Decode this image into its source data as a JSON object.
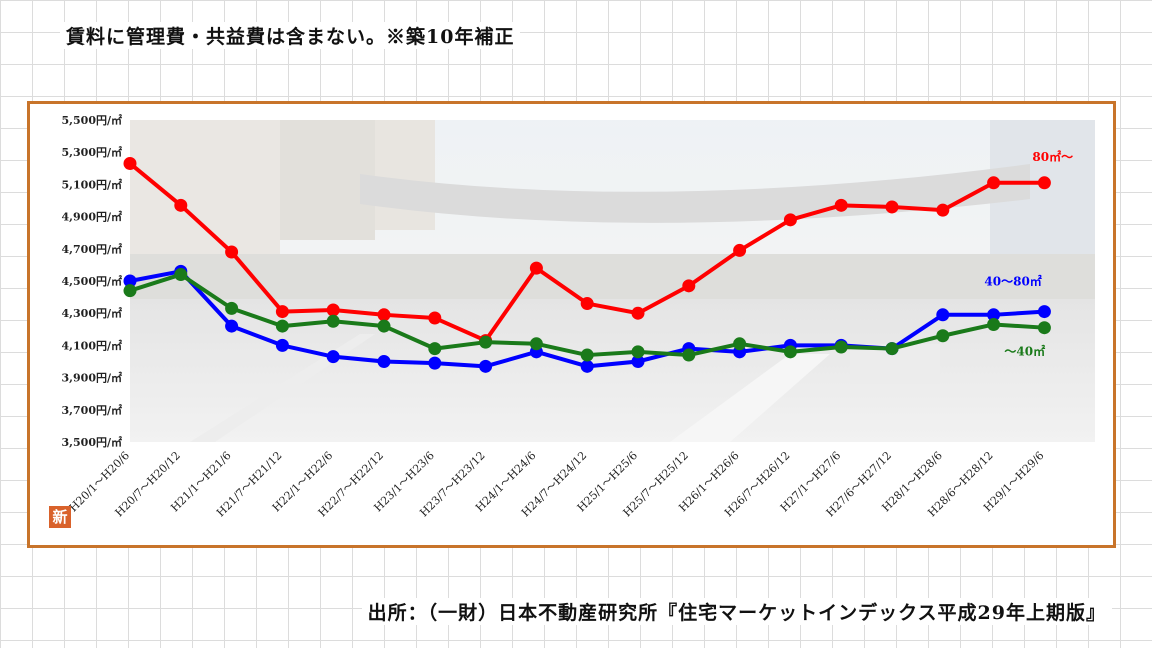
{
  "header": {
    "note": "賃料に管理費・共益費は含まない。※築10年補正"
  },
  "footer": {
    "source": "出所：（一財）日本不動産研究所『住宅マーケットインデックス平成29年上期版』"
  },
  "badge": {
    "text": "新"
  },
  "chart_data": {
    "type": "line",
    "title": "",
    "xlabel": "",
    "ylabel": "",
    "ylim": [
      3500,
      5500
    ],
    "yticks": [
      "5,500円/㎡",
      "5,300円/㎡",
      "5,100円/㎡",
      "4,900円/㎡",
      "4,700円/㎡",
      "4,500円/㎡",
      "4,300円/㎡",
      "4,100円/㎡",
      "3,900円/㎡",
      "3,700円/㎡",
      "3,500円/㎡"
    ],
    "ytick_values": [
      5500,
      5300,
      5100,
      4900,
      4700,
      4500,
      4300,
      4100,
      3900,
      3700,
      3500
    ],
    "categories": [
      "H20/1～H20/6",
      "H20/7～H20/12",
      "H21/1～H21/6",
      "H21/7～H21/12",
      "H22/1～H22/6",
      "H22/7～H22/12",
      "H23/1～H23/6",
      "H23/7～H23/12",
      "H24/1～H24/6",
      "H24/7～H24/12",
      "H25/1～H25/6",
      "H25/7～H25/12",
      "H26/1～H26/6",
      "H26/7～H26/12",
      "H27/1～H27/6",
      "H27/6～H27/12",
      "H28/1～H28/6",
      "H28/6～H28/12",
      "H29/1～H29/6"
    ],
    "series": [
      {
        "name": "80㎡～",
        "color": "#ff0000",
        "values": [
          5230,
          4970,
          4680,
          4310,
          4320,
          4290,
          4270,
          4130,
          4580,
          4360,
          4300,
          4470,
          4690,
          4880,
          4970,
          4960,
          4940,
          5110,
          5110
        ]
      },
      {
        "name": "40～80㎡",
        "color": "#0000ff",
        "values": [
          4500,
          4560,
          4220,
          4100,
          4030,
          4000,
          3990,
          3970,
          4060,
          3970,
          4000,
          4080,
          4060,
          4100,
          4100,
          4080,
          4290,
          4290,
          4310
        ]
      },
      {
        "name": "～40㎡",
        "color": "#1a7a1a",
        "values": [
          4440,
          4540,
          4330,
          4220,
          4250,
          4220,
          4080,
          4120,
          4110,
          4040,
          4060,
          4040,
          4110,
          4060,
          4090,
          4080,
          4160,
          4230,
          4210
        ]
      }
    ],
    "legend": "inline-right",
    "grid": false
  }
}
